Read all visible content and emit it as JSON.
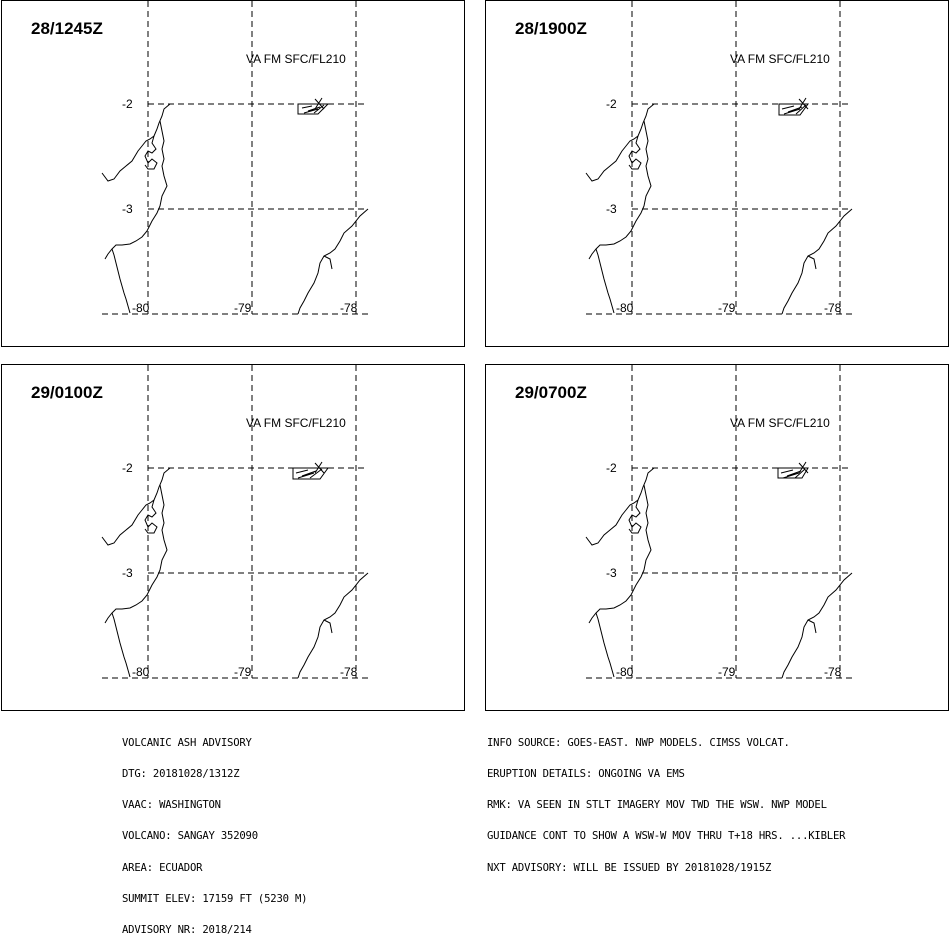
{
  "panels": [
    {
      "title": "28/1245Z",
      "va_label": "VA FM SFC/FL210"
    },
    {
      "title": "28/1900Z",
      "va_label": "VA FM SFC/FL210"
    },
    {
      "title": "29/0100Z",
      "va_label": "VA FM SFC/FL210"
    },
    {
      "title": "29/0700Z",
      "va_label": "VA FM SFC/FL210"
    }
  ],
  "lat_labels": [
    "-2",
    "-3"
  ],
  "lon_labels": [
    "-80",
    "-79",
    "-78"
  ],
  "advisory_left": [
    "VOLCANIC ASH ADVISORY",
    "DTG: 20181028/1312Z",
    "VAAC: WASHINGTON",
    "VOLCANO: SANGAY 352090",
    "AREA: ECUADOR",
    "SUMMIT ELEV: 17159 FT (5230 M)",
    "ADVISORY NR: 2018/214"
  ],
  "advisory_right": [
    "INFO SOURCE: GOES-EAST. NWP MODELS. CIMSS VOLCAT.",
    "ERUPTION DETAILS: ONGOING VA EMS",
    "RMK: VA SEEN IN STLT IMAGERY MOV TWD THE WSW. NWP MODEL",
    "GUIDANCE CONT TO SHOW A WSW-W MOV THRU T+18 HRS. ...KIBLER",
    "NXT ADVISORY: WILL BE ISSUED BY 20181028/1915Z"
  ]
}
